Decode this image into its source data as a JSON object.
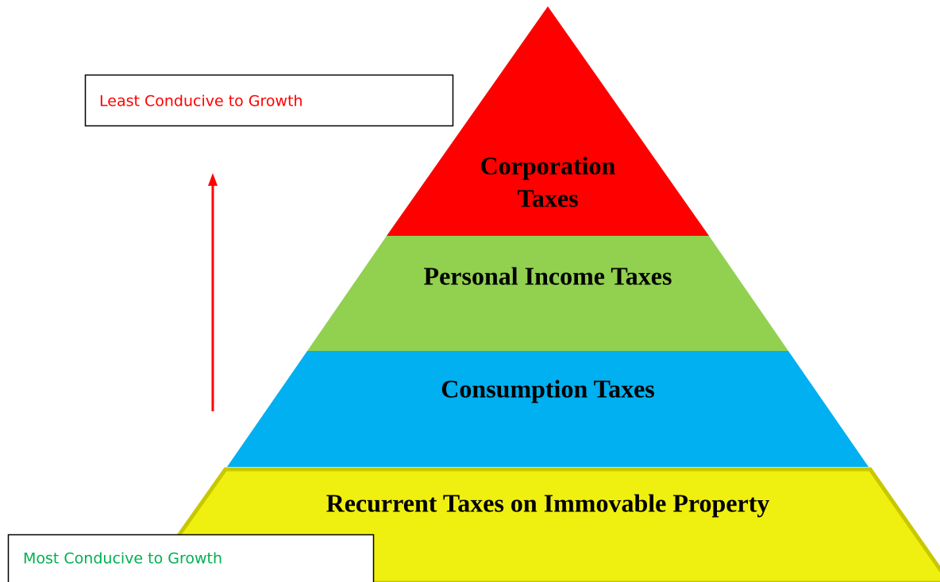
{
  "boxes": {
    "least": "Least Conducive to Growth",
    "most": "Most Conducive to Growth"
  },
  "layers": [
    {
      "lines": [
        "Corporation",
        "Taxes"
      ]
    },
    {
      "lines": [
        "Personal Income Taxes"
      ]
    },
    {
      "lines": [
        "Consumption Taxes"
      ]
    },
    {
      "lines": [
        "Recurrent Taxes on Immovable Property"
      ]
    }
  ]
}
